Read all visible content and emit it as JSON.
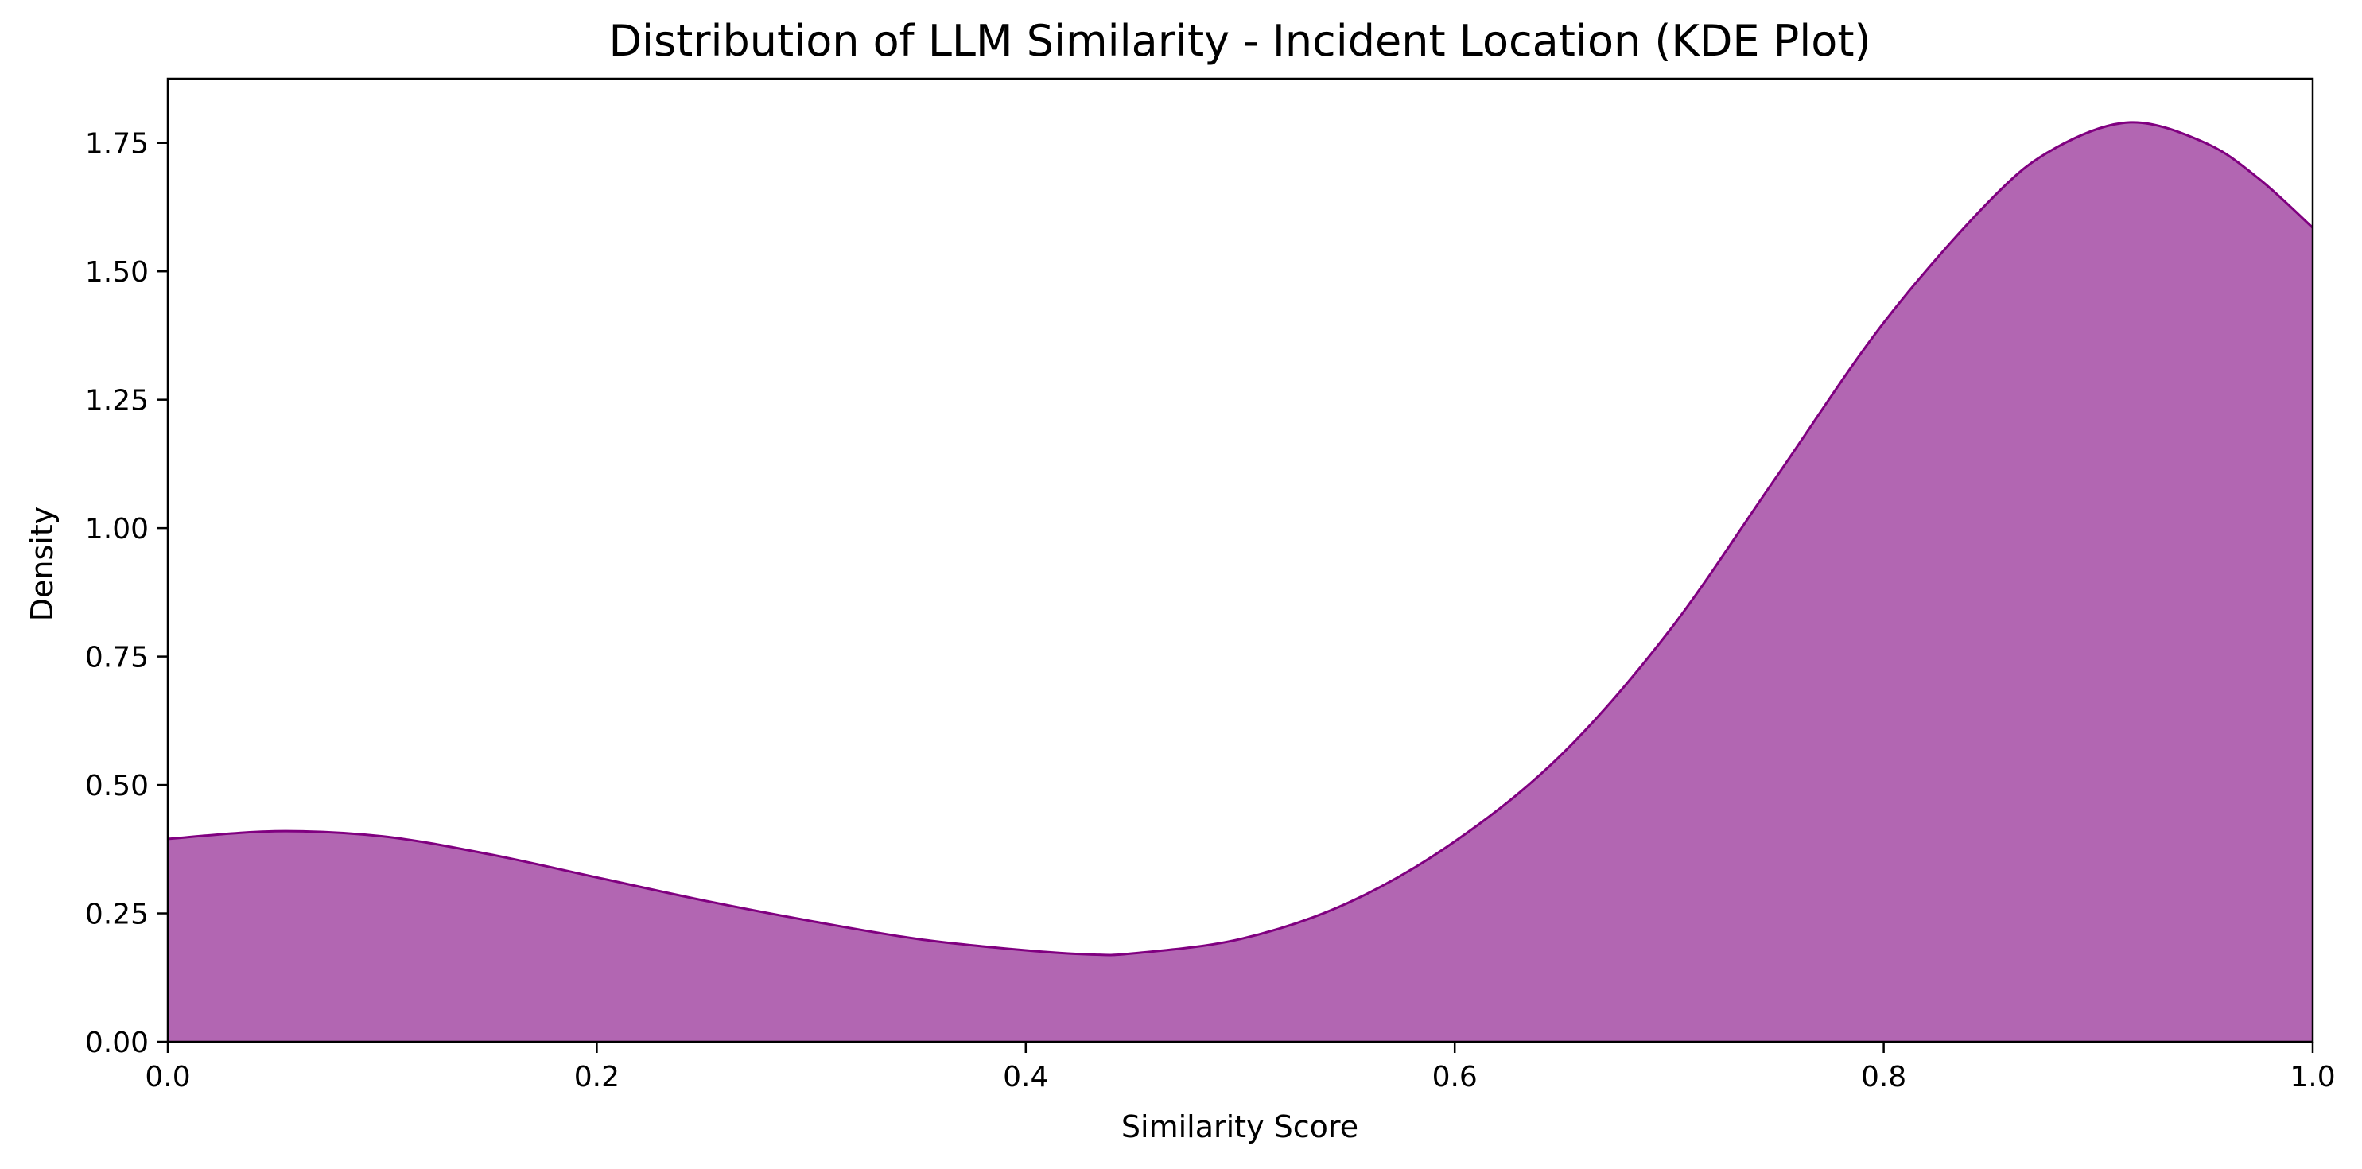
{
  "chart_data": {
    "type": "area",
    "title": "Distribution of LLM Similarity - Incident Location (KDE Plot)",
    "xlabel": "Similarity Score",
    "ylabel": "Density",
    "xlim": [
      0.0,
      1.0
    ],
    "ylim": [
      0.0,
      1.875
    ],
    "x_ticks": [
      0.0,
      0.2,
      0.4,
      0.6,
      0.8,
      1.0
    ],
    "x_tick_labels": [
      "0.0",
      "0.2",
      "0.4",
      "0.6",
      "0.8",
      "1.0"
    ],
    "y_ticks": [
      0.0,
      0.25,
      0.5,
      0.75,
      1.0,
      1.25,
      1.5,
      1.75
    ],
    "y_tick_labels": [
      "0.00",
      "0.25",
      "0.50",
      "0.75",
      "1.00",
      "1.25",
      "1.50",
      "1.75"
    ],
    "grid": false,
    "series": [
      {
        "fill_color": "#b266b2",
        "line_color": "#800080",
        "x": [
          0.0,
          0.05,
          0.1,
          0.15,
          0.2,
          0.25,
          0.3,
          0.35,
          0.4,
          0.43,
          0.45,
          0.5,
          0.55,
          0.6,
          0.65,
          0.7,
          0.75,
          0.8,
          0.85,
          0.88,
          0.915,
          0.95,
          0.975,
          1.0
        ],
        "y": [
          0.395,
          0.41,
          0.4,
          0.365,
          0.32,
          0.275,
          0.235,
          0.2,
          0.178,
          0.17,
          0.172,
          0.2,
          0.27,
          0.39,
          0.56,
          0.8,
          1.1,
          1.4,
          1.64,
          1.74,
          1.79,
          1.75,
          1.68,
          1.585
        ]
      }
    ]
  }
}
